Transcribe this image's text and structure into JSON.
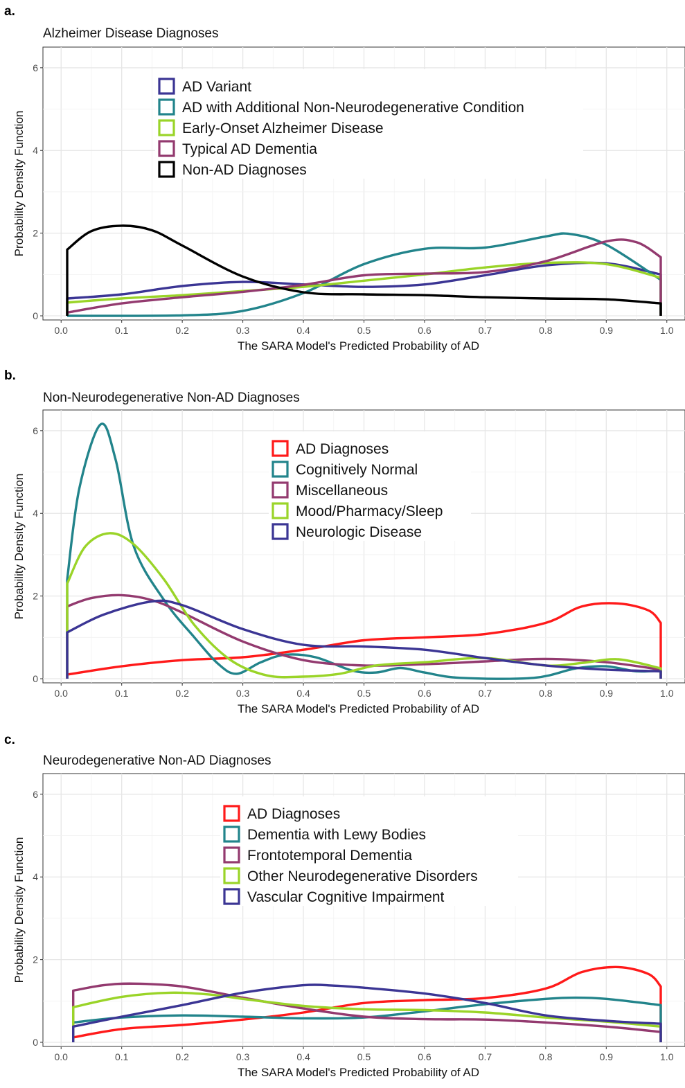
{
  "chart_data": [
    {
      "type": "line",
      "panel_letter": "a.",
      "title": "Alzheimer Disease Diagnoses",
      "xlabel": "The SARA Model's Predicted Probability of AD",
      "ylabel": "Probability Density Function",
      "xlim": [
        -0.03,
        1.03
      ],
      "ylim": [
        -0.1,
        6.5
      ],
      "xticks": [
        "0.0",
        "0.1",
        "0.2",
        "0.3",
        "0.4",
        "0.5",
        "0.6",
        "0.7",
        "0.8",
        "0.9",
        "1.0"
      ],
      "yticks": [
        "0",
        "2",
        "4",
        "6"
      ],
      "grid": true,
      "legend_position": "top-center",
      "series": [
        {
          "name": "AD Variant",
          "color": "#3b3594",
          "points": [
            [
              0.01,
              0.42
            ],
            [
              0.1,
              0.52
            ],
            [
              0.2,
              0.72
            ],
            [
              0.3,
              0.82
            ],
            [
              0.4,
              0.76
            ],
            [
              0.5,
              0.7
            ],
            [
              0.6,
              0.76
            ],
            [
              0.7,
              0.98
            ],
            [
              0.8,
              1.22
            ],
            [
              0.9,
              1.27
            ],
            [
              0.99,
              1.0
            ]
          ]
        },
        {
          "name": "AD with Additional Non-Neurodegenerative Condition",
          "color": "#22848b",
          "points": [
            [
              0.01,
              0.0
            ],
            [
              0.2,
              0.01
            ],
            [
              0.3,
              0.12
            ],
            [
              0.4,
              0.55
            ],
            [
              0.5,
              1.25
            ],
            [
              0.6,
              1.62
            ],
            [
              0.7,
              1.65
            ],
            [
              0.8,
              1.92
            ],
            [
              0.84,
              1.98
            ],
            [
              0.9,
              1.72
            ],
            [
              0.99,
              0.87
            ]
          ]
        },
        {
          "name": "Early-Onset Alzheimer Disease",
          "color": "#9ad428",
          "points": [
            [
              0.01,
              0.32
            ],
            [
              0.1,
              0.42
            ],
            [
              0.2,
              0.5
            ],
            [
              0.3,
              0.6
            ],
            [
              0.4,
              0.7
            ],
            [
              0.5,
              0.85
            ],
            [
              0.6,
              1.0
            ],
            [
              0.7,
              1.17
            ],
            [
              0.8,
              1.28
            ],
            [
              0.9,
              1.25
            ],
            [
              0.99,
              0.92
            ]
          ]
        },
        {
          "name": "Typical AD Dementia",
          "color": "#933a6f",
          "points": [
            [
              0.01,
              0.08
            ],
            [
              0.1,
              0.3
            ],
            [
              0.2,
              0.45
            ],
            [
              0.3,
              0.58
            ],
            [
              0.4,
              0.75
            ],
            [
              0.5,
              0.98
            ],
            [
              0.6,
              1.02
            ],
            [
              0.7,
              1.06
            ],
            [
              0.8,
              1.32
            ],
            [
              0.9,
              1.8
            ],
            [
              0.95,
              1.78
            ],
            [
              0.99,
              1.42
            ]
          ]
        },
        {
          "name": "Non-AD Diagnoses",
          "color": "#000000",
          "points": [
            [
              0.01,
              1.6
            ],
            [
              0.05,
              2.05
            ],
            [
              0.1,
              2.18
            ],
            [
              0.15,
              2.07
            ],
            [
              0.2,
              1.7
            ],
            [
              0.3,
              0.95
            ],
            [
              0.4,
              0.57
            ],
            [
              0.5,
              0.52
            ],
            [
              0.6,
              0.5
            ],
            [
              0.7,
              0.45
            ],
            [
              0.8,
              0.42
            ],
            [
              0.9,
              0.4
            ],
            [
              0.99,
              0.3
            ]
          ]
        }
      ]
    },
    {
      "type": "line",
      "panel_letter": "b.",
      "title": "Non-Neurodegenerative Non-AD Diagnoses",
      "xlabel": "The SARA Model's Predicted Probability of AD",
      "ylabel": "Probability Density Function",
      "xlim": [
        -0.03,
        1.03
      ],
      "ylim": [
        -0.1,
        6.5
      ],
      "xticks": [
        "0.0",
        "0.1",
        "0.2",
        "0.3",
        "0.4",
        "0.5",
        "0.6",
        "0.7",
        "0.8",
        "0.9",
        "1.0"
      ],
      "yticks": [
        "0",
        "2",
        "4",
        "6"
      ],
      "grid": true,
      "legend_position": "top-center",
      "series": [
        {
          "name": "AD Diagnoses",
          "color": "#ff1a1a",
          "points": [
            [
              0.01,
              0.1
            ],
            [
              0.1,
              0.3
            ],
            [
              0.2,
              0.45
            ],
            [
              0.3,
              0.52
            ],
            [
              0.4,
              0.7
            ],
            [
              0.5,
              0.93
            ],
            [
              0.6,
              1.0
            ],
            [
              0.7,
              1.08
            ],
            [
              0.8,
              1.35
            ],
            [
              0.86,
              1.75
            ],
            [
              0.92,
              1.82
            ],
            [
              0.97,
              1.65
            ],
            [
              0.99,
              1.35
            ]
          ]
        },
        {
          "name": "Cognitively Normal",
          "color": "#22848b",
          "points": [
            [
              0.01,
              2.4
            ],
            [
              0.03,
              4.6
            ],
            [
              0.065,
              6.15
            ],
            [
              0.09,
              5.3
            ],
            [
              0.12,
              3.2
            ],
            [
              0.17,
              1.9
            ],
            [
              0.22,
              1.0
            ],
            [
              0.26,
              0.35
            ],
            [
              0.29,
              0.12
            ],
            [
              0.33,
              0.4
            ],
            [
              0.37,
              0.58
            ],
            [
              0.42,
              0.52
            ],
            [
              0.48,
              0.2
            ],
            [
              0.52,
              0.15
            ],
            [
              0.56,
              0.26
            ],
            [
              0.6,
              0.15
            ],
            [
              0.66,
              0.02
            ],
            [
              0.78,
              0.02
            ],
            [
              0.85,
              0.25
            ],
            [
              0.9,
              0.3
            ],
            [
              0.95,
              0.18
            ],
            [
              0.99,
              0.2
            ]
          ]
        },
        {
          "name": "Miscellaneous",
          "color": "#933a6f",
          "points": [
            [
              0.01,
              1.75
            ],
            [
              0.05,
              1.95
            ],
            [
              0.1,
              2.02
            ],
            [
              0.15,
              1.9
            ],
            [
              0.2,
              1.6
            ],
            [
              0.3,
              0.9
            ],
            [
              0.4,
              0.45
            ],
            [
              0.5,
              0.32
            ],
            [
              0.6,
              0.35
            ],
            [
              0.7,
              0.42
            ],
            [
              0.8,
              0.48
            ],
            [
              0.9,
              0.4
            ],
            [
              0.99,
              0.22
            ]
          ]
        },
        {
          "name": "Mood/Pharmacy/Sleep",
          "color": "#9ad428",
          "points": [
            [
              0.01,
              2.3
            ],
            [
              0.04,
              3.2
            ],
            [
              0.08,
              3.52
            ],
            [
              0.12,
              3.25
            ],
            [
              0.17,
              2.4
            ],
            [
              0.22,
              1.3
            ],
            [
              0.28,
              0.45
            ],
            [
              0.34,
              0.08
            ],
            [
              0.4,
              0.05
            ],
            [
              0.46,
              0.12
            ],
            [
              0.52,
              0.32
            ],
            [
              0.6,
              0.4
            ],
            [
              0.7,
              0.5
            ],
            [
              0.8,
              0.32
            ],
            [
              0.86,
              0.38
            ],
            [
              0.92,
              0.47
            ],
            [
              0.99,
              0.25
            ]
          ]
        },
        {
          "name": "Neurologic Disease",
          "color": "#3b3594",
          "points": [
            [
              0.01,
              1.12
            ],
            [
              0.07,
              1.55
            ],
            [
              0.15,
              1.87
            ],
            [
              0.2,
              1.78
            ],
            [
              0.3,
              1.2
            ],
            [
              0.4,
              0.82
            ],
            [
              0.5,
              0.78
            ],
            [
              0.6,
              0.7
            ],
            [
              0.7,
              0.5
            ],
            [
              0.8,
              0.32
            ],
            [
              0.9,
              0.22
            ],
            [
              0.99,
              0.18
            ]
          ]
        }
      ]
    },
    {
      "type": "line",
      "panel_letter": "c.",
      "title": "Neurodegenerative Non-AD Diagnoses",
      "xlabel": "The SARA Model's Predicted Probability of AD",
      "ylabel": "Probability Density Function",
      "xlim": [
        -0.03,
        1.03
      ],
      "ylim": [
        -0.1,
        6.5
      ],
      "xticks": [
        "0.0",
        "0.1",
        "0.2",
        "0.3",
        "0.4",
        "0.5",
        "0.6",
        "0.7",
        "0.8",
        "0.9",
        "1.0"
      ],
      "yticks": [
        "0",
        "2",
        "4",
        "6"
      ],
      "grid": true,
      "legend_position": "top-center",
      "series": [
        {
          "name": "AD Diagnoses",
          "color": "#ff1a1a",
          "points": [
            [
              0.02,
              0.12
            ],
            [
              0.1,
              0.32
            ],
            [
              0.2,
              0.42
            ],
            [
              0.3,
              0.55
            ],
            [
              0.4,
              0.72
            ],
            [
              0.5,
              0.95
            ],
            [
              0.6,
              1.02
            ],
            [
              0.7,
              1.07
            ],
            [
              0.8,
              1.3
            ],
            [
              0.86,
              1.7
            ],
            [
              0.92,
              1.82
            ],
            [
              0.97,
              1.65
            ],
            [
              0.99,
              1.35
            ]
          ]
        },
        {
          "name": "Dementia with Lewy Bodies",
          "color": "#22848b",
          "points": [
            [
              0.02,
              0.48
            ],
            [
              0.1,
              0.6
            ],
            [
              0.2,
              0.65
            ],
            [
              0.3,
              0.62
            ],
            [
              0.4,
              0.58
            ],
            [
              0.5,
              0.6
            ],
            [
              0.6,
              0.75
            ],
            [
              0.7,
              0.92
            ],
            [
              0.8,
              1.05
            ],
            [
              0.85,
              1.08
            ],
            [
              0.9,
              1.05
            ],
            [
              0.99,
              0.9
            ]
          ]
        },
        {
          "name": "Frontotemporal Dementia",
          "color": "#933a6f",
          "points": [
            [
              0.02,
              1.25
            ],
            [
              0.07,
              1.38
            ],
            [
              0.12,
              1.42
            ],
            [
              0.2,
              1.35
            ],
            [
              0.3,
              1.08
            ],
            [
              0.4,
              0.82
            ],
            [
              0.5,
              0.62
            ],
            [
              0.6,
              0.56
            ],
            [
              0.7,
              0.55
            ],
            [
              0.8,
              0.48
            ],
            [
              0.9,
              0.38
            ],
            [
              0.99,
              0.25
            ]
          ]
        },
        {
          "name": "Other Neurodegenerative Disorders",
          "color": "#9ad428",
          "points": [
            [
              0.02,
              0.85
            ],
            [
              0.1,
              1.1
            ],
            [
              0.18,
              1.2
            ],
            [
              0.25,
              1.15
            ],
            [
              0.3,
              1.05
            ],
            [
              0.4,
              0.88
            ],
            [
              0.5,
              0.8
            ],
            [
              0.6,
              0.78
            ],
            [
              0.7,
              0.72
            ],
            [
              0.8,
              0.6
            ],
            [
              0.9,
              0.5
            ],
            [
              0.99,
              0.38
            ]
          ]
        },
        {
          "name": "Vascular Cognitive Impairment",
          "color": "#3b3594",
          "points": [
            [
              0.02,
              0.38
            ],
            [
              0.1,
              0.62
            ],
            [
              0.2,
              0.9
            ],
            [
              0.3,
              1.2
            ],
            [
              0.4,
              1.38
            ],
            [
              0.45,
              1.37
            ],
            [
              0.5,
              1.32
            ],
            [
              0.6,
              1.18
            ],
            [
              0.7,
              0.95
            ],
            [
              0.8,
              0.65
            ],
            [
              0.9,
              0.52
            ],
            [
              0.99,
              0.45
            ]
          ]
        }
      ]
    }
  ]
}
